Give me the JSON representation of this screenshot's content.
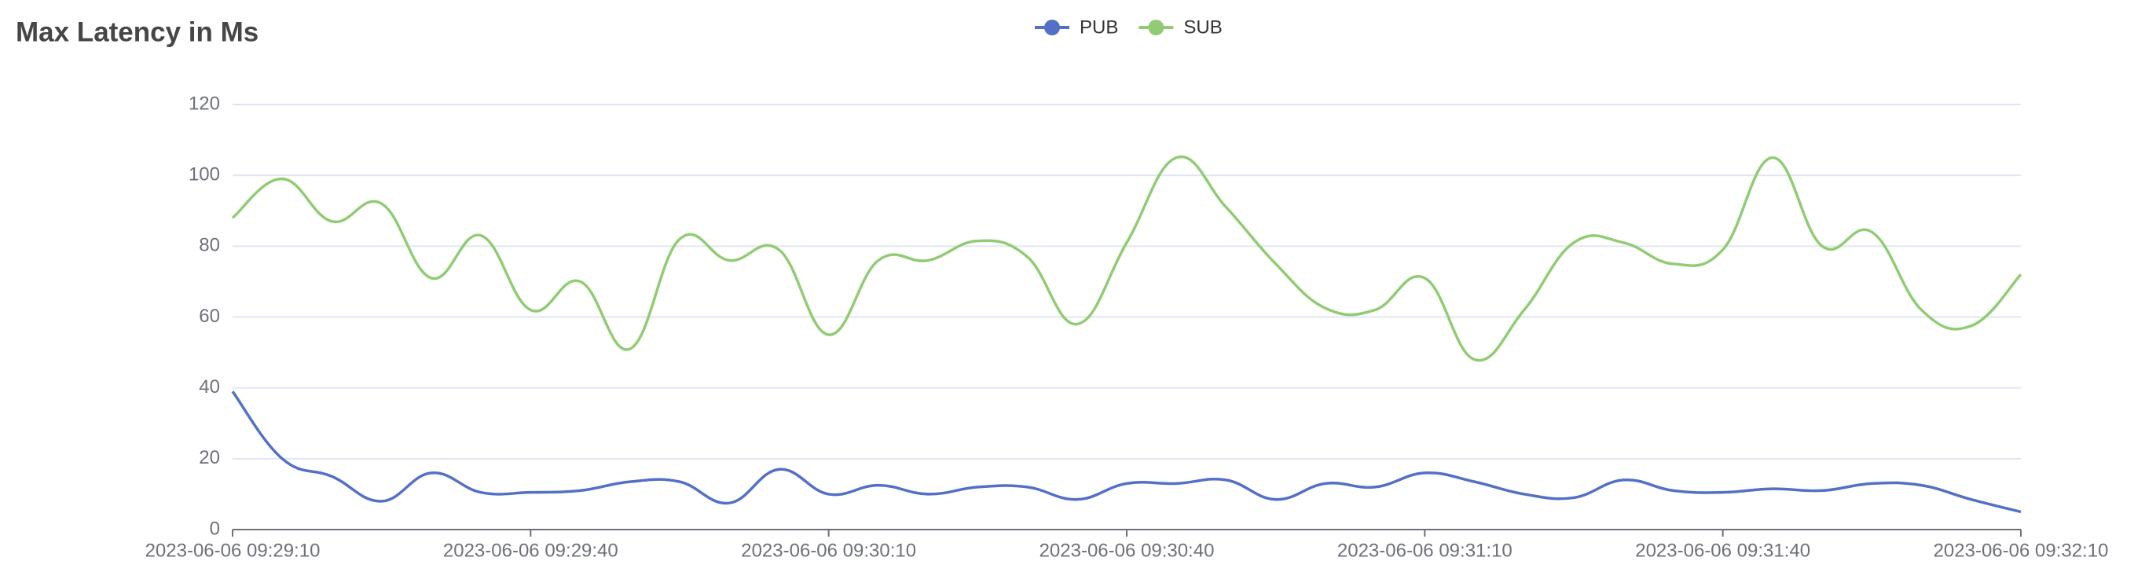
{
  "chart_data": {
    "type": "line",
    "title": "Max Latency in Ms",
    "categories": [
      "2023-06-06 09:29:10",
      null,
      null,
      null,
      null,
      null,
      "2023-06-06 09:29:40",
      null,
      null,
      null,
      null,
      null,
      "2023-06-06 09:30:10",
      null,
      null,
      null,
      null,
      null,
      "2023-06-06 09:30:40",
      null,
      null,
      null,
      null,
      null,
      "2023-06-06 09:31:10",
      null,
      null,
      null,
      null,
      null,
      "2023-06-06 09:31:40",
      null,
      null,
      null,
      null,
      null,
      "2023-06-06 09:32:10"
    ],
    "series": [
      {
        "name": "PUB",
        "color": "#5470c6",
        "values": [
          39,
          20,
          15,
          8,
          16,
          10.5,
          10.5,
          11,
          13.5,
          13.5,
          7.5,
          17,
          10,
          12.5,
          10,
          12,
          12,
          8.5,
          13,
          13,
          14,
          8.5,
          13,
          12,
          16,
          13.5,
          10,
          9,
          14,
          11,
          10.5,
          11.5,
          11,
          13,
          12.5,
          8.5,
          5
        ]
      },
      {
        "name": "SUB",
        "color": "#91cc75",
        "values": [
          88,
          99,
          87,
          92,
          71,
          83,
          62,
          70,
          51,
          82,
          76,
          79,
          55,
          76,
          76,
          81.5,
          77,
          58,
          81,
          105,
          91,
          75,
          62.5,
          62,
          71,
          48,
          62,
          81,
          81,
          75,
          79,
          105,
          80,
          84,
          62,
          57.5,
          72
        ]
      }
    ],
    "ylim": [
      0,
      120
    ],
    "yticks": [
      0,
      20,
      40,
      60,
      80,
      100,
      120
    ],
    "grid": true
  }
}
